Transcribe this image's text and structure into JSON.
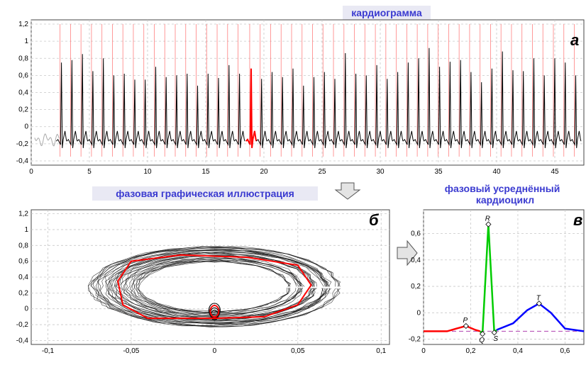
{
  "titles": {
    "cardiogram": "кардиограмма",
    "phase_portrait": "фазовая графическая иллюстрация",
    "avg_cycle_line1": "фазовый усреднённый",
    "avg_cycle_line2": "кардиоцикл"
  },
  "panel_letters": {
    "a": "а",
    "b": "б",
    "v": "в"
  },
  "colors": {
    "trace": "#000000",
    "highlight": "#ff0000",
    "grid": "#c8c8c8",
    "title": "#3a3ad0",
    "marker": "#ff8080"
  },
  "chart_data": [
    {
      "type": "line",
      "panel": "а",
      "title": "кардиограмма",
      "xlim": [
        0,
        47.5
      ],
      "ylim": [
        -0.45,
        1.25
      ],
      "x_ticks": [
        "0",
        "5",
        "10",
        "15",
        "20",
        "25",
        "30",
        "35",
        "40",
        "45"
      ],
      "y_ticks": [
        "-0,4",
        "-0,2",
        "0",
        "0,2",
        "0,4",
        "0,6",
        "0,8",
        "1",
        "1,2"
      ],
      "grid": true,
      "r_peak_times": [
        2.6,
        3.5,
        4.4,
        5.3,
        6.2,
        7.1,
        8.0,
        8.9,
        9.8,
        10.7,
        11.6,
        12.5,
        13.4,
        14.3,
        15.2,
        16.1,
        17.0,
        17.9,
        18.9,
        19.8,
        20.7,
        21.6,
        22.5,
        23.4,
        24.3,
        25.2,
        26.1,
        27.0,
        27.9,
        28.8,
        29.7,
        30.6,
        31.5,
        32.4,
        33.3,
        34.2,
        35.1,
        36.0,
        36.9,
        37.8,
        38.7,
        39.6,
        40.5,
        41.4,
        42.3,
        43.2,
        44.1,
        45.0,
        45.9,
        46.8
      ],
      "r_peak_amplitudes": [
        0.75,
        0.78,
        0.85,
        0.65,
        0.8,
        0.6,
        0.62,
        0.55,
        0.55,
        0.7,
        0.58,
        0.6,
        0.62,
        0.48,
        0.62,
        0.57,
        0.72,
        0.62,
        0.68,
        0.56,
        0.64,
        0.58,
        0.68,
        0.48,
        0.58,
        0.64,
        0.56,
        0.86,
        0.62,
        0.6,
        0.72,
        0.56,
        0.64,
        0.75,
        0.8,
        0.92,
        0.7,
        0.76,
        0.78,
        0.64,
        0.52,
        0.68,
        0.88,
        0.66,
        0.65,
        0.8,
        0.6,
        0.8,
        0.75,
        0.6
      ],
      "highlighted_beat_time": 18.9,
      "baseline": -0.17
    },
    {
      "type": "line",
      "panel": "б",
      "title": "фазовая графическая иллюстрация",
      "xlim": [
        -0.11,
        0.105
      ],
      "ylim": [
        -0.45,
        1.25
      ],
      "x_ticks": [
        "-0,1",
        "-0,05",
        "0",
        "0,05",
        "0,1"
      ],
      "y_ticks": [
        "-0,4",
        "-0,2",
        "0",
        "0,2",
        "0,4",
        "0,6",
        "0,8",
        "1",
        "1,2"
      ],
      "grid": true,
      "average_loop": {
        "x": [
          0.0,
          0.03,
          0.05,
          0.058,
          0.05,
          0.02,
          -0.02,
          -0.05,
          -0.058,
          -0.055,
          -0.04,
          0.0
        ],
        "y": [
          -0.12,
          -0.1,
          0.05,
          0.3,
          0.55,
          0.65,
          0.68,
          0.6,
          0.35,
          0.05,
          -0.12,
          -0.12
        ]
      }
    },
    {
      "type": "line",
      "panel": "в",
      "title": "фазовый усреднённый кардиоцикл",
      "xlim": [
        0,
        0.68
      ],
      "ylim": [
        -0.24,
        0.78
      ],
      "x_ticks": [
        "0",
        "0,2",
        "0,4",
        "0,6"
      ],
      "y_ticks": [
        "-0,2",
        "0",
        "0,2",
        "0,4",
        "0,6"
      ],
      "grid": true,
      "segments": [
        {
          "wave": "P",
          "color": "#ff0000",
          "x": [
            0.0,
            0.1,
            0.14,
            0.18,
            0.22,
            0.24
          ],
          "y": [
            -0.14,
            -0.14,
            -0.12,
            -0.1,
            -0.13,
            -0.14
          ]
        },
        {
          "wave": "QRS",
          "color": "#00cc00",
          "x": [
            0.24,
            0.25,
            0.275,
            0.3,
            0.31
          ],
          "y": [
            -0.14,
            -0.16,
            0.67,
            -0.15,
            -0.13
          ]
        },
        {
          "wave": "T",
          "color": "#0000ff",
          "x": [
            0.31,
            0.38,
            0.44,
            0.49,
            0.54,
            0.6,
            0.68
          ],
          "y": [
            -0.13,
            -0.08,
            0.02,
            0.07,
            0.0,
            -0.12,
            -0.14
          ]
        }
      ],
      "points": [
        {
          "label": "P",
          "x": 0.18,
          "y": -0.1
        },
        {
          "label": "Q",
          "x": 0.25,
          "y": -0.16
        },
        {
          "label": "R",
          "x": 0.275,
          "y": 0.67
        },
        {
          "label": "S",
          "x": 0.3,
          "y": -0.15
        },
        {
          "label": "T",
          "x": 0.49,
          "y": 0.07
        }
      ],
      "baseline": -0.14
    }
  ]
}
